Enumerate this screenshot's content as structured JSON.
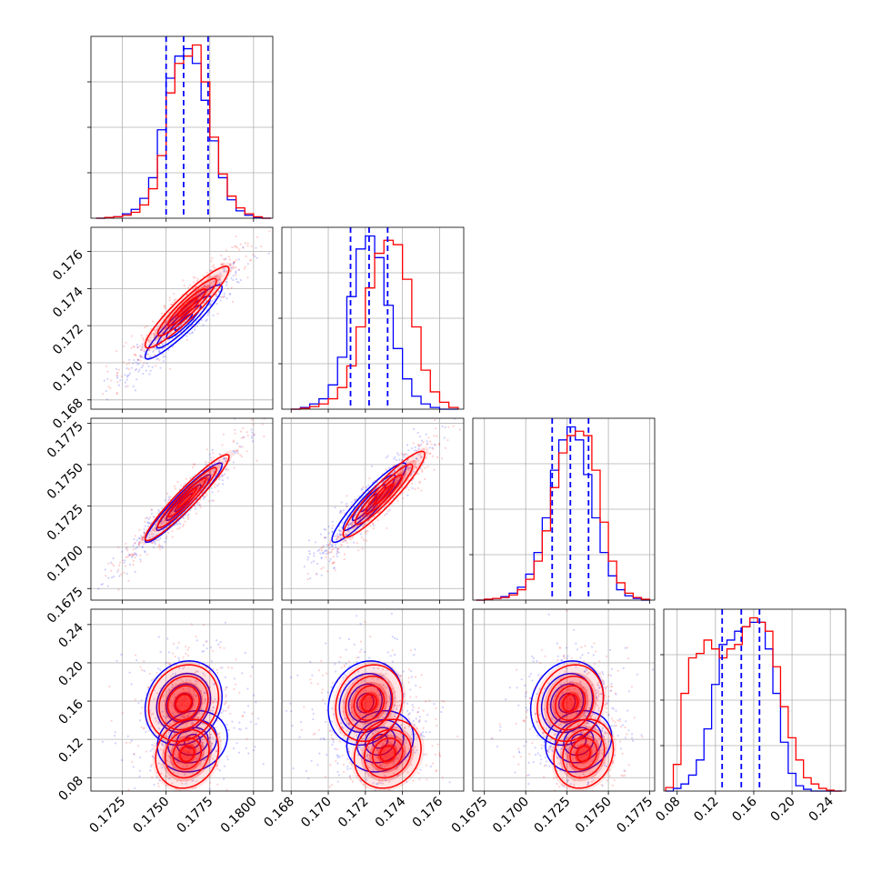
{
  "chart_data": {
    "type": "corner",
    "grid": true,
    "colors": {
      "series_a": "#0000ff",
      "series_b": "#ff0000",
      "quantile_lines": "#0000ff"
    },
    "series": [
      {
        "name": "",
        "color": "#0000ff"
      },
      {
        "name": "",
        "color": "#ff0000"
      }
    ],
    "parameters": [
      {
        "range": [
          0.1707,
          0.1811
        ],
        "ticks": [
          0.1725,
          0.175,
          0.1775,
          0.18
        ],
        "tick_labels": [
          "0.1725",
          "0.1750",
          "0.1775",
          "0.1800"
        ],
        "quantiles": [
          0.175,
          0.176,
          0.1774
        ]
      },
      {
        "range": [
          0.1675,
          0.1773
        ],
        "ticks": [
          0.168,
          0.17,
          0.172,
          0.174,
          0.176
        ],
        "tick_labels": [
          "0.168",
          "0.170",
          "0.172",
          "0.174",
          "0.176"
        ],
        "quantiles": [
          0.1712,
          0.1722,
          0.1732
        ]
      },
      {
        "range": [
          0.1668,
          0.1778
        ],
        "ticks": [
          0.1675,
          0.17,
          0.1725,
          0.175,
          0.1775
        ],
        "tick_labels": [
          "0.1675",
          "0.1700",
          "0.1725",
          "0.1750",
          "0.1775"
        ],
        "quantiles": [
          0.1716,
          0.1727,
          0.1738
        ]
      },
      {
        "range": [
          0.066,
          0.256
        ],
        "ticks": [
          0.08,
          0.12,
          0.16,
          0.2,
          0.24
        ],
        "tick_labels": [
          "0.08",
          "0.12",
          "0.16",
          "0.20",
          "0.24"
        ],
        "quantiles": [
          0.127,
          0.147,
          0.166
        ]
      }
    ],
    "histograms": [
      {
        "param": 0,
        "bin_edges": [
          0.171,
          0.1715,
          0.172,
          0.1725,
          0.173,
          0.1735,
          0.174,
          0.1745,
          0.175,
          0.1755,
          0.176,
          0.1765,
          0.177,
          0.1775,
          0.178,
          0.1785,
          0.179,
          0.1795,
          0.18,
          0.1805,
          0.181
        ],
        "series_a": [
          0,
          1,
          2,
          6,
          12,
          27,
          55,
          120,
          190,
          220,
          230,
          210,
          160,
          105,
          55,
          25,
          10,
          4,
          1,
          0
        ],
        "series_b": [
          0,
          1,
          2,
          4,
          8,
          18,
          40,
          85,
          170,
          210,
          220,
          235,
          185,
          110,
          60,
          30,
          14,
          6,
          2,
          0
        ]
      },
      {
        "param": 1,
        "bin_edges": [
          0.168,
          0.1685,
          0.169,
          0.1695,
          0.17,
          0.1705,
          0.171,
          0.1715,
          0.172,
          0.1725,
          0.173,
          0.1735,
          0.174,
          0.1745,
          0.175,
          0.1755,
          0.176,
          0.1765,
          0.177
        ],
        "series_a": [
          0,
          2,
          6,
          12,
          28,
          60,
          130,
          185,
          200,
          175,
          120,
          70,
          35,
          15,
          6,
          2,
          0,
          0
        ],
        "series_b": [
          0,
          1,
          3,
          6,
          12,
          25,
          50,
          95,
          140,
          180,
          195,
          190,
          150,
          95,
          45,
          20,
          8,
          2
        ]
      },
      {
        "param": 2,
        "bin_edges": [
          0.167,
          0.1675,
          0.168,
          0.1685,
          0.169,
          0.1695,
          0.17,
          0.1705,
          0.171,
          0.1715,
          0.172,
          0.1725,
          0.173,
          0.1735,
          0.174,
          0.1745,
          0.175,
          0.1755,
          0.176,
          0.1765,
          0.177,
          0.1775
        ],
        "series_a": [
          0,
          1,
          2,
          4,
          8,
          15,
          30,
          55,
          95,
          150,
          185,
          200,
          185,
          145,
          95,
          55,
          28,
          12,
          5,
          2,
          0
        ],
        "series_b": [
          0,
          1,
          2,
          3,
          6,
          12,
          24,
          45,
          80,
          130,
          170,
          190,
          195,
          190,
          150,
          90,
          45,
          20,
          8,
          3,
          1
        ]
      },
      {
        "param": 3,
        "bin_edges": [
          0.068,
          0.076,
          0.084,
          0.092,
          0.1,
          0.108,
          0.116,
          0.124,
          0.132,
          0.14,
          0.148,
          0.156,
          0.164,
          0.172,
          0.18,
          0.188,
          0.196,
          0.204,
          0.212,
          0.22,
          0.228,
          0.236,
          0.244,
          0.252
        ],
        "series_a": [
          0,
          3,
          8,
          18,
          35,
          70,
          120,
          165,
          170,
          180,
          185,
          190,
          190,
          160,
          110,
          55,
          20,
          6,
          2,
          0,
          0,
          0,
          0
        ],
        "series_b": [
          4,
          30,
          110,
          150,
          155,
          170,
          160,
          150,
          160,
          165,
          185,
          195,
          190,
          180,
          140,
          95,
          60,
          35,
          15,
          8,
          3,
          1,
          0
        ]
      }
    ],
    "pairs": [
      {
        "x_param": 0,
        "y_param": 1,
        "series_a": {
          "center": [
            0.176,
            0.1722
          ],
          "sigma": [
            0.0011,
            0.001
          ],
          "rho": 0.93
        },
        "series_b": {
          "center": [
            0.1762,
            0.173
          ],
          "sigma": [
            0.0012,
            0.0011
          ],
          "rho": 0.93
        }
      },
      {
        "x_param": 0,
        "y_param": 2,
        "series_a": {
          "center": [
            0.176,
            0.1727
          ],
          "sigma": [
            0.0011,
            0.0012
          ],
          "rho": 0.95
        },
        "series_b": {
          "center": [
            0.1762,
            0.173
          ],
          "sigma": [
            0.0012,
            0.0013
          ],
          "rho": 0.95
        }
      },
      {
        "x_param": 1,
        "y_param": 2,
        "series_a": {
          "center": [
            0.1722,
            0.1727
          ],
          "sigma": [
            0.001,
            0.0012
          ],
          "rho": 0.93
        },
        "series_b": {
          "center": [
            0.173,
            0.1732
          ],
          "sigma": [
            0.0011,
            0.0013
          ],
          "rho": 0.93
        }
      },
      {
        "x_param": 0,
        "y_param": 3,
        "series_a": {
          "modes": [
            [
              0.176,
              0.158,
              0.0011,
              0.022
            ],
            [
              0.1765,
              0.118,
              0.001,
              0.016
            ]
          ]
        },
        "series_b": {
          "modes": [
            [
              0.176,
              0.158,
              0.001,
              0.02
            ],
            [
              0.1762,
              0.105,
              0.0009,
              0.018
            ]
          ]
        }
      },
      {
        "x_param": 1,
        "y_param": 3,
        "series_a": {
          "modes": [
            [
              0.172,
              0.158,
              0.001,
              0.022
            ],
            [
              0.1728,
              0.118,
              0.0009,
              0.016
            ]
          ]
        },
        "series_b": {
          "modes": [
            [
              0.1722,
              0.158,
              0.0009,
              0.02
            ],
            [
              0.1732,
              0.105,
              0.0009,
              0.018
            ]
          ]
        }
      },
      {
        "x_param": 2,
        "y_param": 3,
        "series_a": {
          "modes": [
            [
              0.1725,
              0.158,
              0.0011,
              0.022
            ],
            [
              0.1732,
              0.118,
              0.001,
              0.016
            ]
          ]
        },
        "series_b": {
          "modes": [
            [
              0.1727,
              0.158,
              0.001,
              0.02
            ],
            [
              0.1735,
              0.105,
              0.0009,
              0.018
            ]
          ]
        }
      }
    ]
  }
}
